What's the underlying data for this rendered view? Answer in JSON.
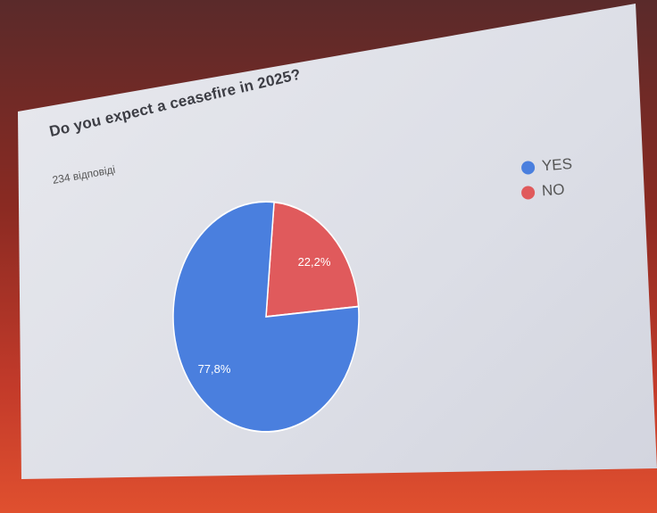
{
  "chart_data": {
    "type": "pie",
    "title": "Do you expect a ceasefire in 2025?",
    "subtitle": "234 відповіді",
    "categories": [
      "YES",
      "NO"
    ],
    "values": [
      77.8,
      22.2
    ],
    "data_labels": [
      "77,8%",
      "22,2%"
    ],
    "colors": [
      "#4a7fde",
      "#e05a5c"
    ],
    "legend": "top-right"
  }
}
